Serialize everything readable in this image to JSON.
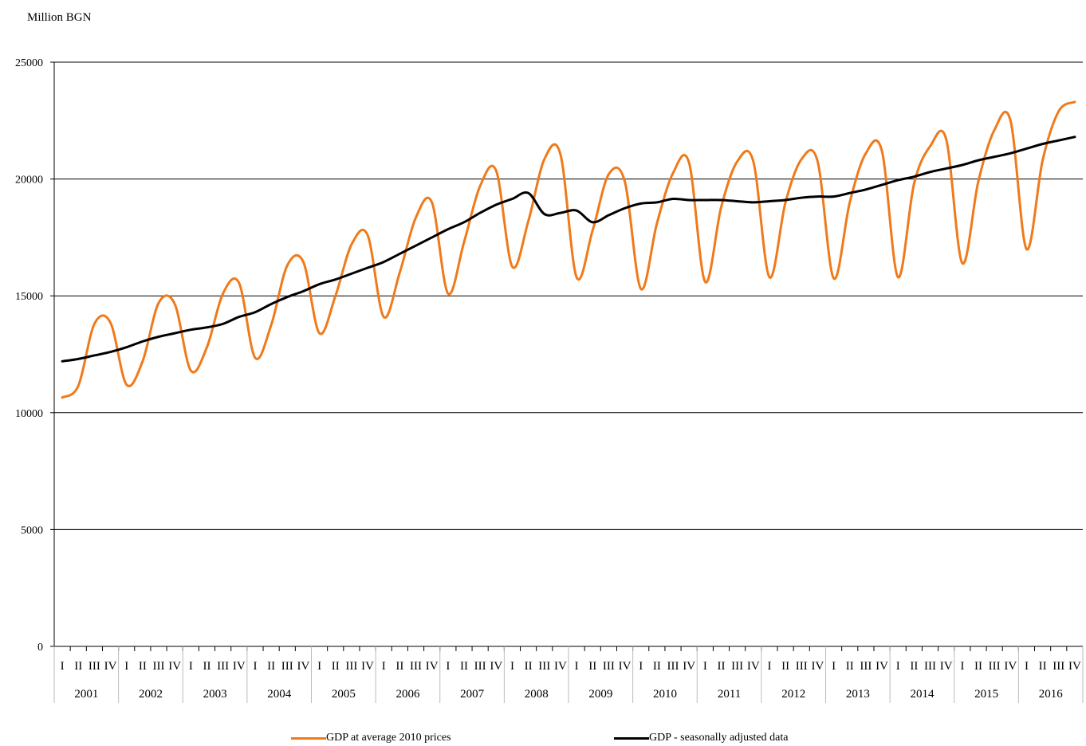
{
  "chart_data": {
    "type": "line",
    "ylabel": "Million BGN",
    "ylim": [
      0,
      25000
    ],
    "yticks": [
      0,
      5000,
      10000,
      15000,
      20000,
      25000
    ],
    "grid": "horizontal",
    "legend_position": "bottom",
    "quarters": [
      "I",
      "II",
      "III",
      "IV"
    ],
    "years": [
      "2001",
      "2002",
      "2003",
      "2004",
      "2005",
      "2006",
      "2007",
      "2008",
      "2009",
      "2010",
      "2011",
      "2012",
      "2013",
      "2014",
      "2015",
      "2016"
    ],
    "series": [
      {
        "name": "GDP at average 2010 prices",
        "color": "#f07a1a",
        "values": [
          10650,
          11150,
          13800,
          13850,
          11200,
          12200,
          14700,
          14650,
          11800,
          12800,
          15100,
          15550,
          12350,
          13750,
          16300,
          16450,
          13400,
          15000,
          17200,
          17600,
          14100,
          16000,
          18350,
          19000,
          15100,
          17300,
          19700,
          20350,
          16250,
          18200,
          20850,
          21050,
          15800,
          17800,
          20200,
          19900,
          15300,
          18100,
          20250,
          20700,
          15600,
          18800,
          20750,
          20750,
          15800,
          19000,
          20850,
          20750,
          15750,
          19000,
          21100,
          21200,
          15800,
          19800,
          21400,
          21700,
          16400,
          19900,
          22100,
          22500,
          17000,
          20800,
          22900,
          23300
        ]
      },
      {
        "name": "GDP - seasonally adjusted data",
        "color": "#000000",
        "values": [
          12200,
          12300,
          12450,
          12600,
          12800,
          13050,
          13250,
          13400,
          13550,
          13650,
          13800,
          14100,
          14300,
          14650,
          14950,
          15200,
          15500,
          15700,
          15950,
          16200,
          16450,
          16800,
          17150,
          17500,
          17850,
          18150,
          18550,
          18900,
          19150,
          19400,
          18500,
          18550,
          18650,
          18150,
          18450,
          18750,
          18950,
          19000,
          19150,
          19100,
          19100,
          19100,
          19050,
          19000,
          19050,
          19100,
          19200,
          19250,
          19250,
          19400,
          19550,
          19750,
          19950,
          20100,
          20300,
          20450,
          20600,
          20800,
          20950,
          21100,
          21300,
          21500,
          21650,
          21800
        ]
      }
    ]
  }
}
